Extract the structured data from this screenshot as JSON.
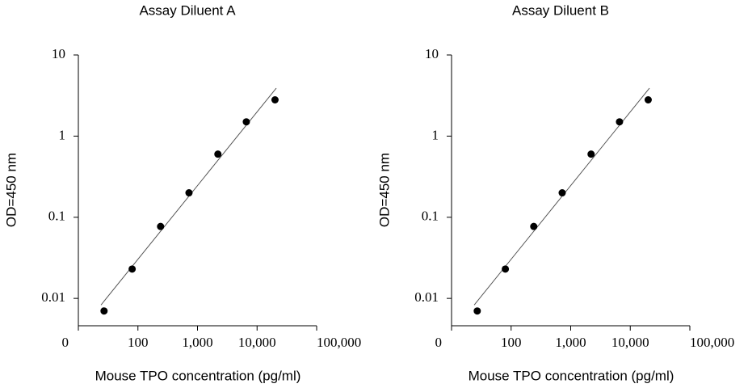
{
  "chart_data": [
    {
      "type": "scatter",
      "title": "Assay Diluent A",
      "xlabel": "Mouse TPO concentration (pg/ml)",
      "ylabel": "OD=450 nm",
      "x": [
        27,
        80,
        240,
        720,
        2200,
        6600,
        20000
      ],
      "values": [
        0.007,
        0.023,
        0.077,
        0.2,
        0.6,
        1.5,
        2.8
      ],
      "color": "#000000",
      "fit_line": {
        "x": [
          24,
          21000
        ],
        "values": [
          0.0083,
          3.9
        ],
        "color": "#555555"
      },
      "xscale": "log",
      "yscale": "log",
      "xlim": [
        10,
        100000
      ],
      "xticks": [
        {
          "value": 10,
          "label": "0"
        },
        100,
        {
          "value": 1000,
          "label": "1,000"
        },
        {
          "value": 10000,
          "label": "10,000"
        },
        {
          "value": 100000,
          "label": "100,000"
        }
      ],
      "ylim": [
        0.0046,
        10
      ],
      "yticks": [
        0.01,
        0.1,
        1,
        10
      ]
    },
    {
      "type": "scatter",
      "title": "Assay Diluent B",
      "xlabel": "Mouse TPO concentration (pg/ml)",
      "ylabel": "OD=450 nm",
      "x": [
        27,
        80,
        240,
        720,
        2200,
        6600,
        20000
      ],
      "values": [
        0.007,
        0.023,
        0.077,
        0.2,
        0.6,
        1.5,
        2.8
      ],
      "color": "#000000",
      "fit_line": {
        "x": [
          24,
          21000
        ],
        "values": [
          0.0083,
          3.9
        ],
        "color": "#555555"
      },
      "xscale": "log",
      "yscale": "log",
      "xlim": [
        10,
        100000
      ],
      "xticks": [
        {
          "value": 10,
          "label": "0"
        },
        100,
        {
          "value": 1000,
          "label": "1,000"
        },
        {
          "value": 10000,
          "label": "10,000"
        },
        {
          "value": 100000,
          "label": "100,000"
        }
      ],
      "ylim": [
        0.0046,
        10
      ],
      "yticks": [
        0.01,
        0.1,
        1,
        10
      ]
    }
  ]
}
